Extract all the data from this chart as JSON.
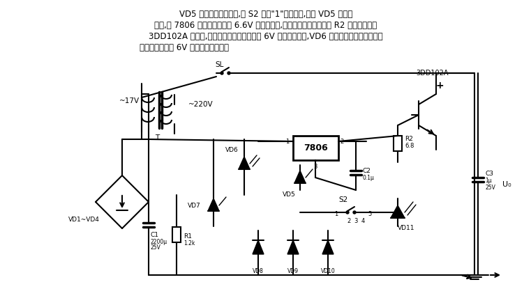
{
  "bg_color": "#ffffff",
  "line_color": "#000000",
  "title_text": "VD5 为电路附加二极管,当 S2 处在\"1\"的位置时,由于 VD5 的降压",
  "line2": "作用,在 7806 的输出端输出约 6.6V 的直流电压,输出电流通过保护电阻 R2 输人到调整管",
  "line3": "3DD102A 的基极,这时发射极便有大电流的 6V 直流稳压输出,VD6 在作为电源指示的同时还",
  "line4": "可以作为本电路 6V 电压的输出指示。",
  "fig_width": 7.61,
  "fig_height": 4.05,
  "dpi": 100
}
